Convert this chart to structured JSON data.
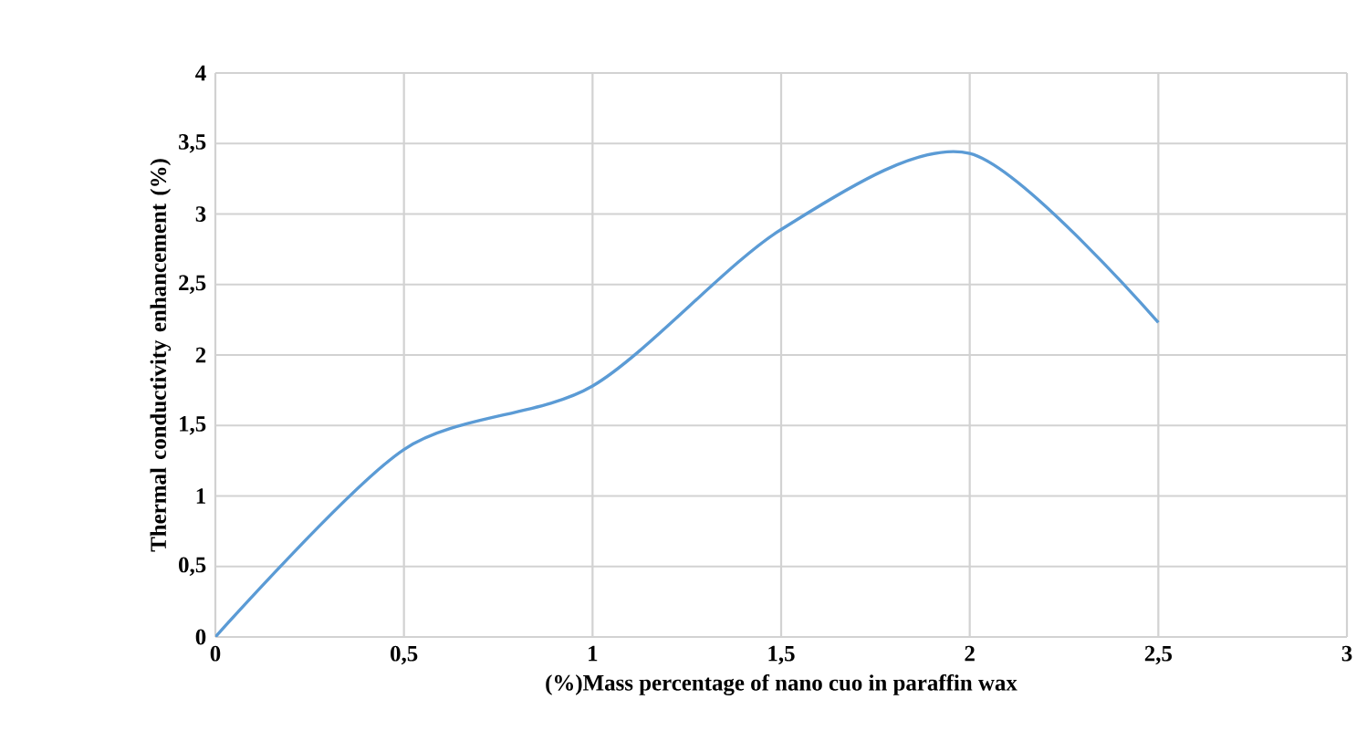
{
  "chart_data": {
    "type": "line",
    "xlabel": "(%)Mass percentage of nano cuo in paraffin wax",
    "ylabel": "Thermal conductivity enhancement (%)",
    "x": [
      0,
      0.5,
      1,
      1.5,
      2,
      2.5
    ],
    "series": [
      {
        "color": "#5b9bd5",
        "values": [
          0,
          1.33,
          1.78,
          2.89,
          3.43,
          2.23
        ]
      }
    ],
    "xlim": [
      0,
      3
    ],
    "ylim": [
      0,
      4
    ],
    "xticks": [
      0,
      {
        "value": 0.5,
        "label": "0,5"
      },
      1,
      {
        "value": 1.5,
        "label": "1,5"
      },
      2,
      {
        "value": 2.5,
        "label": "2,5"
      },
      3
    ],
    "yticks": [
      0,
      {
        "value": 0.5,
        "label": "0,5"
      },
      1,
      {
        "value": 1.5,
        "label": "1,5"
      },
      2,
      {
        "value": 2.5,
        "label": "2,5"
      },
      3,
      {
        "value": 3.5,
        "label": "3,5"
      },
      4
    ],
    "grid": true,
    "marker": "none",
    "line_style": "solid"
  }
}
